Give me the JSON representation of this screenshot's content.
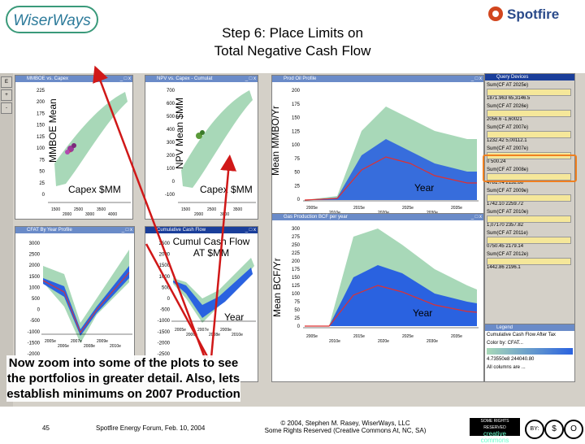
{
  "logos": {
    "left_text": "WiserWays",
    "right_text": "Spotfire"
  },
  "title": {
    "line1": "Step 6: Place Limits on",
    "line2": "Total Negative Cash Flow"
  },
  "windows": {
    "mmboe_vs_capex": {
      "title": "MMBOE vs. Capex",
      "ylabel": "MMBOE Mean",
      "xlabel": "Capex $MM",
      "yticks": [
        "225",
        "200",
        "175",
        "150",
        "125",
        "100",
        "75",
        "50",
        "25",
        "0"
      ]
    },
    "npv_vs_capex": {
      "title": "NPV vs. Capex - Cumulat",
      "ylabel": "NPV Mean $MM",
      "xlabel": "Capex $MM",
      "yticks": [
        "700",
        "600",
        "500",
        "400",
        "300",
        "200",
        "100",
        "0",
        "-100"
      ]
    },
    "prod_oil": {
      "title": "Prod Oil Profile",
      "ylabel": "Mean MMBO/Yr",
      "xlabel": "Year",
      "yticks": [
        "200",
        "175",
        "150",
        "125",
        "100",
        "75",
        "50",
        "25",
        "0"
      ]
    },
    "cfat_year": {
      "title": "CFAT By Year Profile",
      "yticks": [
        "3000",
        "2500",
        "2000",
        "1500",
        "1000",
        "500",
        "0",
        "-500",
        "-1000",
        "-1500",
        "-2000"
      ]
    },
    "cumul_cash": {
      "title": "Cumulative Cash Flow",
      "ylabel": "Cumul Cash Flow AT $MM",
      "xlabel": "Year",
      "yticks": [
        "2500",
        "2000",
        "1500",
        "1000",
        "500",
        "0",
        "-500",
        "-1000",
        "-1500",
        "-2000",
        "-2500"
      ]
    },
    "gas_prod": {
      "title": "Gas Production BCF per year",
      "ylabel": "Mean BCF/Yr",
      "xlabel": "Year",
      "yticks": [
        "300",
        "275",
        "250",
        "225",
        "200",
        "175",
        "150",
        "125",
        "100",
        "75",
        "50",
        "25",
        "0"
      ]
    }
  },
  "query_panel": {
    "title": "Query Devices",
    "rows": [
      {
        "head": "Sum(CF AT 2025e)",
        "val": "1871.963   65,3146.5"
      },
      {
        "head": "Sum(CF AT 2026e)",
        "val": "2056.6   -1,60021"
      },
      {
        "head": "Sum(CF AT 2007e)",
        "val": "1232.42   5,00112.1"
      },
      {
        "head": "Sum(CF AT 2007e)",
        "val": "0   500.24"
      },
      {
        "head": "Sum(CF AT 2008e)",
        "val": "4781.74   2132.86"
      },
      {
        "head": "Sum(CF AT 2009e)",
        "val": "1742.10   2259.72"
      },
      {
        "head": "Sum(CF AT 2010e)",
        "val": "1,07170   2357.82"
      },
      {
        "head": "Sum(CF AT 2011e)",
        "val": "0750.45   2179.14"
      },
      {
        "head": "Sum(CF AT 2012e)",
        "val": "1442.86   2196.1"
      }
    ]
  },
  "legend": {
    "title": "Legend",
    "line1": "Cumulative Cash Flow After Tax",
    "line2": "Color by: CFAT...",
    "range": "4.73550e8   244040.80",
    "footer": "All columns are ..."
  },
  "caption": "Now zoom into some of the plots to see the portfolios in greater detail. Also, lets establish minimums on 2007 Production",
  "footer": {
    "page": "45",
    "event": "Spotfire Energy Forum, Feb. 10, 2004",
    "copyright_line1": "© 2004, Stephen M. Rasey, WiserWays, LLC",
    "copyright_line2": "Some Rights Reserved (Creative Commons At, NC, SA)",
    "badge_top": "SOME RIGHTS RESERVED",
    "badge_bottom": "creative commons",
    "cc_icons": [
      "BY:",
      "$",
      "O"
    ]
  },
  "colors": {
    "teal": "#a8d8b8",
    "blue": "#2a62e0",
    "red": "#e03030",
    "orange": "#f08020",
    "app_grey": "#d4d0c8"
  }
}
